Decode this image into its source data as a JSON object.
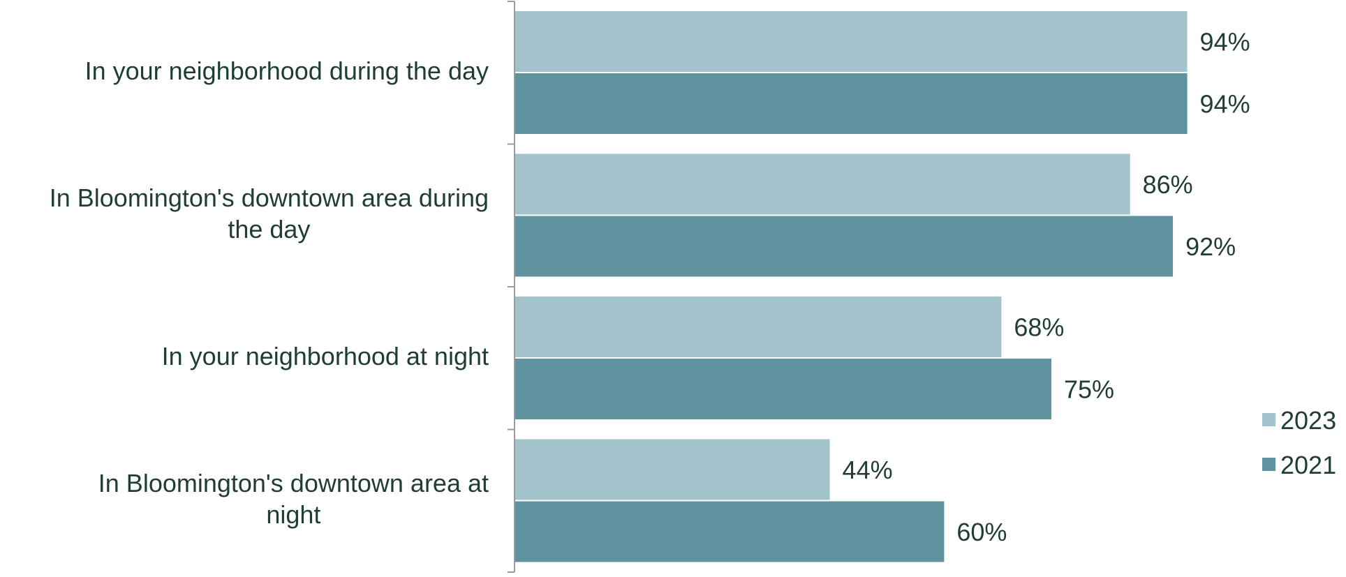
{
  "chart_data": {
    "type": "bar",
    "orientation": "horizontal",
    "categories": [
      [
        "In your neighborhood during the day"
      ],
      [
        "In Bloomington's downtown area during",
        "the day"
      ],
      [
        "In your neighborhood at night"
      ],
      [
        "In Bloomington's downtown area at",
        "night"
      ]
    ],
    "series": [
      {
        "name": "2023",
        "values": [
          94,
          86,
          68,
          44
        ],
        "labels": [
          "94%",
          "86%",
          "68%",
          "44%"
        ],
        "color": "#a2c3cb"
      },
      {
        "name": "2021",
        "values": [
          94,
          92,
          75,
          60
        ],
        "labels": [
          "94%",
          "92%",
          "75%",
          "60%"
        ],
        "color": "#5f939f"
      }
    ],
    "xlim": [
      0,
      100
    ],
    "title": "",
    "xlabel": "",
    "ylabel": "",
    "grid": false,
    "legend_position": "right",
    "text_color": "#1f3d36",
    "axis_color": "#999999"
  }
}
